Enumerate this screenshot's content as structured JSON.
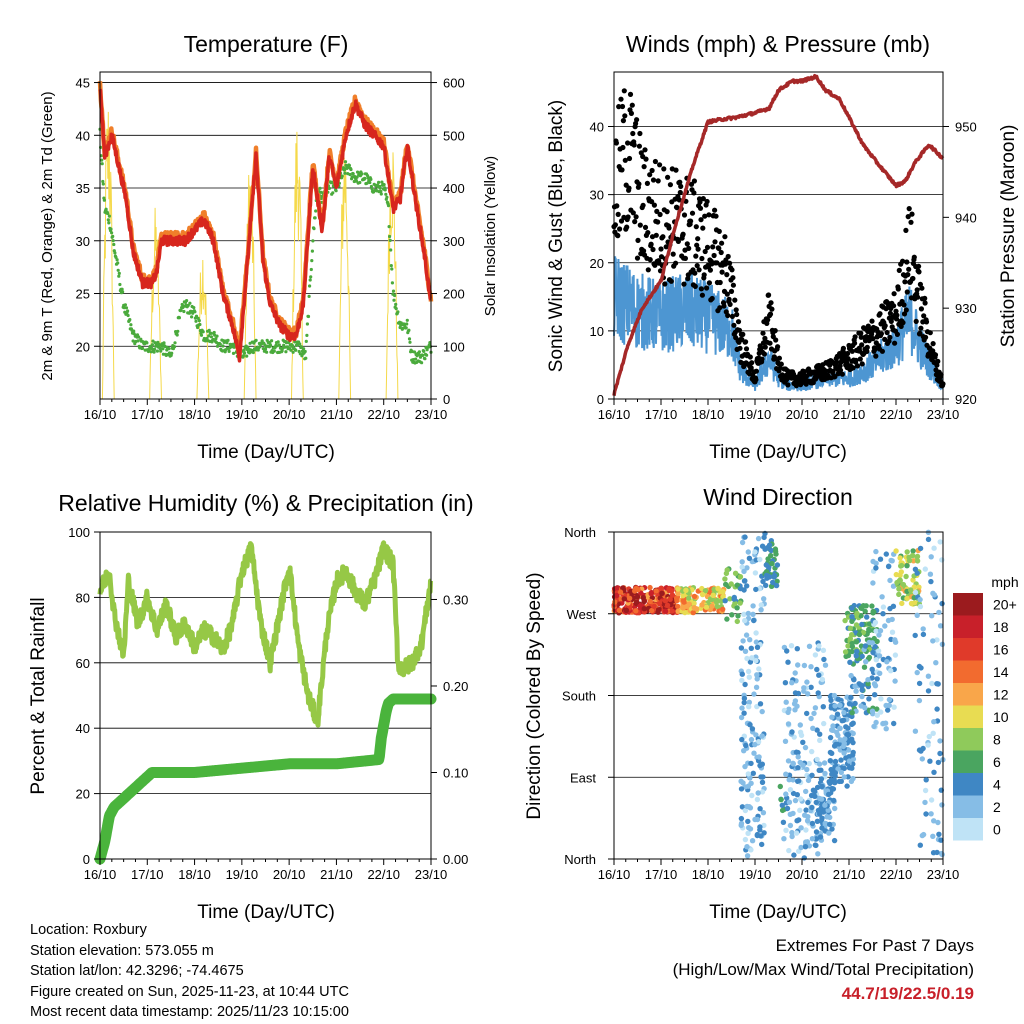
{
  "chart_data": [
    {
      "type": "line",
      "title": "Temperature (F)",
      "xlabel": "Time (Day/UTC)",
      "ylabel": "2m & 9m T (Red, Orange) & 2m Td (Green)",
      "y2label": "Solar Insolation (Yellow)",
      "categories": [
        "16/10",
        "17/10",
        "18/10",
        "19/10",
        "20/10",
        "21/10",
        "22/10",
        "23/10"
      ],
      "ylim": [
        15,
        46
      ],
      "yticks": [
        20,
        25,
        30,
        35,
        40,
        45
      ],
      "y2lim": [
        0,
        620
      ],
      "y2ticks": [
        0,
        100,
        200,
        300,
        400,
        500,
        600
      ],
      "colors": {
        "t2m": "#d7261e",
        "t9m": "#f07f2a",
        "td": "#4aaa3c",
        "solar": "#f5d94a"
      },
      "series": [
        {
          "name": "2m T",
          "x": [
            0,
            0.1,
            0.25,
            0.4,
            0.55,
            0.7,
            0.9,
            1.1,
            1.2,
            1.3,
            1.4,
            1.6,
            1.8,
            2.0,
            2.2,
            2.4,
            2.6,
            2.8,
            2.95,
            3.1,
            3.3,
            3.45,
            3.6,
            3.8,
            4.0,
            4.15,
            4.3,
            4.5,
            4.7,
            4.85,
            5.0,
            5.2,
            5.4,
            5.6,
            5.8,
            6.0,
            6.2,
            6.35,
            6.5,
            6.7,
            6.85,
            7.0
          ],
          "values": [
            44.7,
            38,
            40,
            37,
            34,
            29,
            26,
            26,
            27,
            30,
            30,
            30,
            30,
            31,
            32,
            30,
            25,
            22,
            19,
            27,
            38,
            28,
            24,
            22,
            21,
            21,
            24,
            37,
            31,
            38,
            35,
            40,
            43,
            41,
            40,
            39,
            33,
            34,
            39,
            33,
            29,
            24
          ]
        },
        {
          "name": "2m Td",
          "x": [
            0,
            0.1,
            0.2,
            0.35,
            0.5,
            0.7,
            0.9,
            1.1,
            1.3,
            1.5,
            1.6,
            1.7,
            1.8,
            2.0,
            2.2,
            2.4,
            2.6,
            2.8,
            3.0,
            3.2,
            3.4,
            3.6,
            3.8,
            4.0,
            4.2,
            4.35,
            4.5,
            4.6,
            4.7,
            4.8,
            5.0,
            5.2,
            5.4,
            5.6,
            5.8,
            6.0,
            6.1,
            6.2,
            6.35,
            6.5,
            6.6,
            6.8,
            7.0
          ],
          "values": [
            40,
            33,
            32,
            28,
            24,
            21,
            20,
            20,
            20,
            19,
            21,
            23,
            24,
            23,
            21,
            21,
            20,
            20,
            19,
            20,
            20,
            20,
            20,
            20,
            20,
            19,
            30,
            35,
            34,
            35,
            35,
            37,
            36,
            36,
            35,
            35,
            33,
            25,
            22,
            22,
            19,
            19,
            20
          ]
        },
        {
          "name": "Solar Insolation",
          "x": [
            0,
            1,
            2,
            3,
            4,
            5,
            6
          ],
          "peaks": [
            600,
            370,
            310,
            480,
            560,
            540,
            540
          ]
        }
      ]
    },
    {
      "type": "scatter",
      "title": "Winds (mph) & Pressure (mb)",
      "xlabel": "Time (Day/UTC)",
      "ylabel": "Sonic Wind & Gust (Blue, Black)",
      "y2label": "Station Pressure (Maroon)",
      "categories": [
        "16/10",
        "17/10",
        "18/10",
        "19/10",
        "20/10",
        "21/10",
        "22/10",
        "23/10"
      ],
      "ylim": [
        0,
        48
      ],
      "yticks": [
        0,
        10,
        20,
        30,
        40
      ],
      "y2lim": [
        920,
        956
      ],
      "y2ticks": [
        920,
        930,
        940,
        950
      ],
      "colors": {
        "wind": "#4d96d2",
        "gust": "#000000",
        "pressure": "#a52828"
      },
      "series": [
        {
          "name": "Sonic Wind",
          "x": [
            0,
            0.5,
            1,
            1.5,
            2,
            2.5,
            2.7,
            3.0,
            3.3,
            3.5,
            3.7,
            4,
            4.5,
            5,
            5.5,
            6,
            6.3,
            6.5,
            6.8,
            7
          ],
          "values": [
            15,
            13,
            12,
            13,
            12,
            10,
            4,
            2,
            6,
            3,
            2,
            2,
            3,
            3,
            5,
            8,
            12,
            8,
            4,
            2
          ]
        },
        {
          "name": "Gust",
          "x": [
            0,
            0.3,
            0.6,
            1,
            1.5,
            2,
            2.4,
            2.7,
            3.0,
            3.3,
            3.5,
            3.7,
            4,
            4.5,
            5,
            5.5,
            6,
            6.3,
            6.5,
            6.8,
            7
          ],
          "values": [
            30,
            36,
            28,
            26,
            25,
            22,
            18,
            8,
            3,
            12,
            5,
            3,
            3,
            4,
            6,
            9,
            12,
            22,
            14,
            6,
            2
          ]
        },
        {
          "name": "Station Pressure",
          "x": [
            0,
            0.3,
            0.6,
            1,
            1.3,
            1.7,
            2.0,
            2.3,
            2.6,
            3.0,
            3.3,
            3.5,
            3.8,
            4.0,
            4.3,
            4.5,
            4.8,
            5.0,
            5.3,
            5.6,
            6.0,
            6.2,
            6.4,
            6.7,
            7
          ],
          "values": [
            920.5,
            926,
            930,
            933,
            939,
            946,
            950.5,
            950.8,
            951,
            951.5,
            952,
            954,
            955,
            955,
            955.5,
            954,
            953,
            951,
            948,
            946,
            943.5,
            944,
            946,
            948,
            946.5
          ]
        }
      ]
    },
    {
      "type": "line",
      "title": "Relative Humidity (%) & Precipitation (in)",
      "xlabel": "Time (Day/UTC)",
      "ylabel": "Percent & Total Rainfall",
      "categories": [
        "16/10",
        "17/10",
        "18/10",
        "19/10",
        "20/10",
        "21/10",
        "22/10",
        "23/10"
      ],
      "ylim": [
        0,
        100
      ],
      "yticks": [
        0,
        20,
        40,
        60,
        80,
        100
      ],
      "y2lim": [
        0,
        0.378
      ],
      "y2ticks": [
        "0.00",
        "0.10",
        "0.20",
        "0.30"
      ],
      "colors": {
        "rh": "#96c846",
        "precip": "#4ab43c"
      },
      "series": [
        {
          "name": "Relative Humidity",
          "x": [
            0,
            0.2,
            0.3,
            0.5,
            0.6,
            0.8,
            1.0,
            1.2,
            1.4,
            1.6,
            1.8,
            2.0,
            2.2,
            2.4,
            2.6,
            2.8,
            3.0,
            3.2,
            3.4,
            3.6,
            3.8,
            4.0,
            4.2,
            4.4,
            4.6,
            4.8,
            5.0,
            5.2,
            5.4,
            5.6,
            5.8,
            6.0,
            6.2,
            6.3,
            6.4,
            6.6,
            6.8,
            7.0
          ],
          "values": [
            82,
            88,
            75,
            62,
            85,
            72,
            80,
            70,
            78,
            68,
            72,
            65,
            70,
            68,
            64,
            72,
            88,
            95,
            72,
            60,
            75,
            90,
            65,
            50,
            42,
            70,
            85,
            88,
            82,
            78,
            85,
            95,
            90,
            60,
            58,
            60,
            66,
            85
          ]
        },
        {
          "name": "Total Precipitation",
          "x": [
            0,
            0.1,
            0.2,
            0.3,
            0.5,
            0.7,
            0.9,
            1.0,
            1.1,
            1.3,
            2.0,
            3.0,
            4.0,
            5.0,
            5.9,
            5.95,
            6.05,
            6.1,
            6.2,
            7.0
          ],
          "values": [
            0.0,
            0.02,
            0.05,
            0.06,
            0.07,
            0.08,
            0.09,
            0.095,
            0.1,
            0.1,
            0.1,
            0.105,
            0.11,
            0.11,
            0.115,
            0.14,
            0.17,
            0.18,
            0.185,
            0.185
          ]
        }
      ]
    },
    {
      "type": "scatter",
      "title": "Wind Direction",
      "xlabel": "Time (Day/UTC)",
      "ylabel": "Direction (Colored By Speed)",
      "categories": [
        "16/10",
        "17/10",
        "18/10",
        "19/10",
        "20/10",
        "21/10",
        "22/10",
        "23/10"
      ],
      "ylim": [
        0,
        360
      ],
      "yticklabels": [
        "North",
        "East",
        "South",
        "West",
        "North"
      ],
      "legend_title": "mph",
      "legend_labels": [
        "20+",
        "18",
        "16",
        "14",
        "12",
        "10",
        "8",
        "6",
        "4",
        "2",
        "0"
      ],
      "legend_colors": [
        "#9b1b1e",
        "#c8202a",
        "#e03a2a",
        "#f26b2f",
        "#f9a64a",
        "#e8dc52",
        "#8fca5b",
        "#4aa560",
        "#3f87c4",
        "#86bde6",
        "#bfe3f6"
      ]
    }
  ],
  "footer": {
    "location": "Location: Roxbury",
    "elevation": "Station elevation: 573.055 m",
    "latlon": "Station lat/lon: 42.3296; -74.4675",
    "created": "Figure created on Sun, 2025-11-23, at 10:44 UTC",
    "recent": "Most recent data timestamp: 2025/11/23 10:15:00"
  },
  "extremes": {
    "title": "Extremes For Past 7 Days",
    "subtitle": "(High/Low/Max Wind/Total Precipitation)",
    "values": "44.7/19/22.5/0.19"
  }
}
